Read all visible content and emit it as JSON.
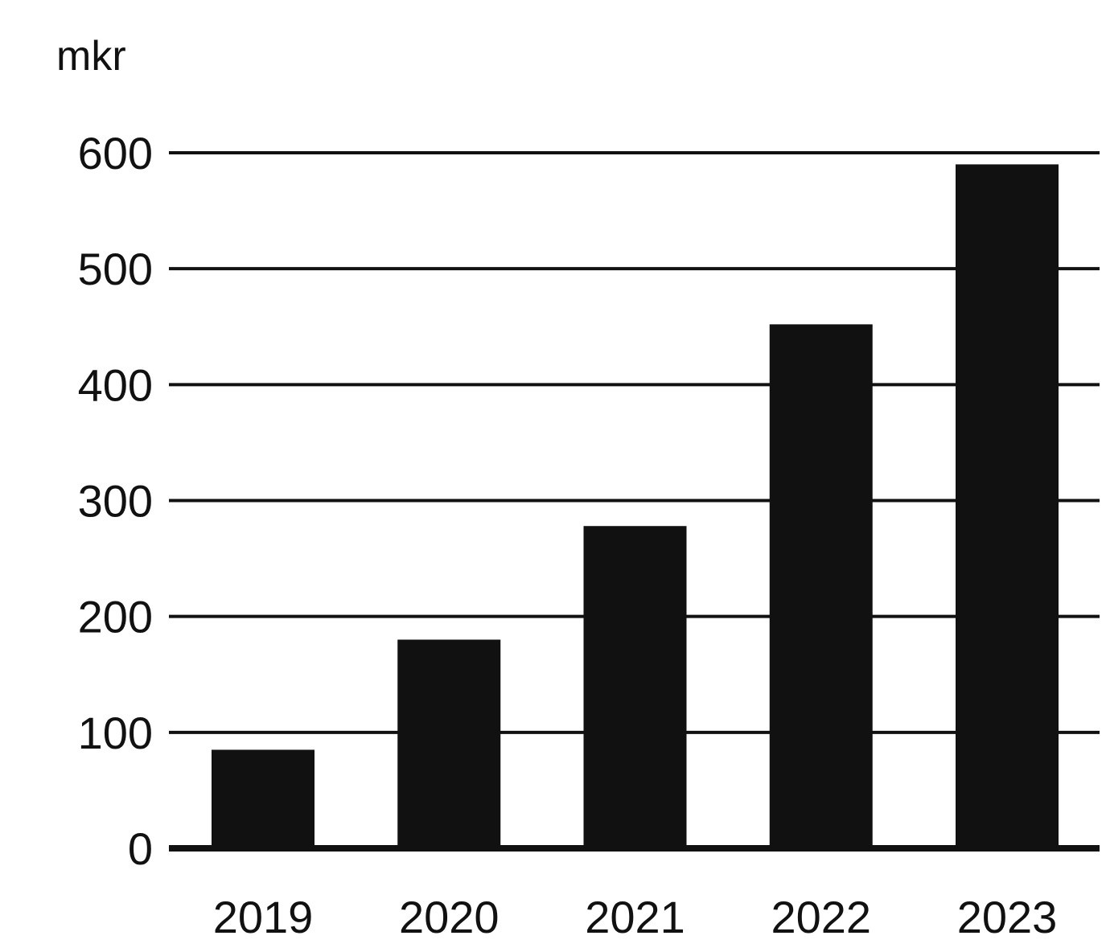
{
  "chart_data": {
    "type": "bar",
    "ylabel": "mkr",
    "categories": [
      "2019",
      "2020",
      "2021",
      "2022",
      "2023"
    ],
    "values": [
      85,
      180,
      278,
      452,
      590
    ],
    "ylim": [
      0,
      600
    ],
    "yticks": [
      0,
      100,
      200,
      300,
      400,
      500,
      600
    ],
    "grid": true,
    "legend": "none",
    "bar_color": "#111111"
  }
}
